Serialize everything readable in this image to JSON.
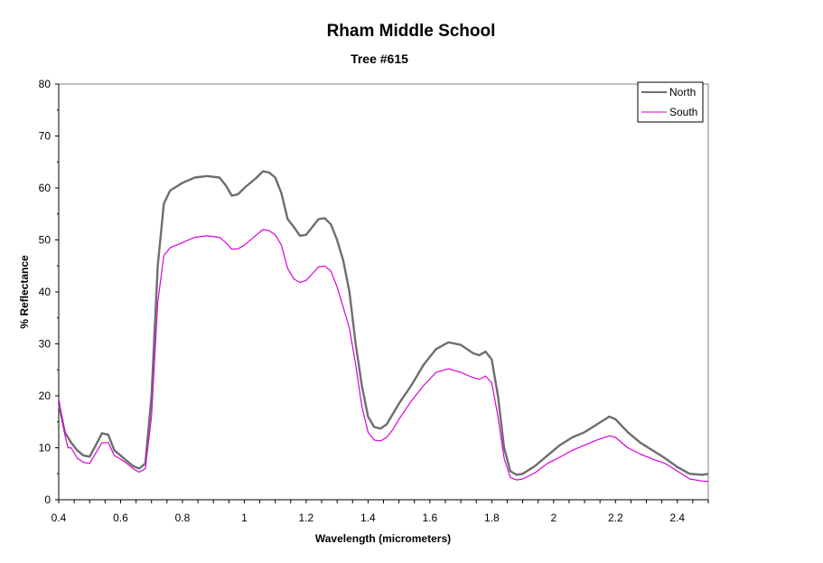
{
  "chart_data": {
    "type": "line",
    "title": "Rham Middle School",
    "subtitle": "Tree #615",
    "xlabel": "Wavelength (micrometers)",
    "ylabel": "% Reflectance",
    "xlim": [
      0.4,
      2.5
    ],
    "ylim": [
      0,
      80
    ],
    "x_ticks": [
      "0.4",
      "0.6",
      "0.8",
      "1",
      "1.2",
      "1.4",
      "1.6",
      "1.8",
      "2",
      "2.2",
      "2.4"
    ],
    "x_tick_values": [
      0.4,
      0.6,
      0.8,
      1.0,
      1.2,
      1.4,
      1.6,
      1.8,
      2.0,
      2.2,
      2.4
    ],
    "y_ticks": [
      "0",
      "10",
      "20",
      "30",
      "40",
      "50",
      "60",
      "70",
      "80"
    ],
    "y_tick_values": [
      0,
      10,
      20,
      30,
      40,
      50,
      60,
      70,
      80
    ],
    "grid": false,
    "legend_position": "top-right",
    "series": [
      {
        "name": "North",
        "color": "#6e6e6e",
        "points": [
          [
            0.4,
            18.5
          ],
          [
            0.42,
            13.0
          ],
          [
            0.44,
            11.0
          ],
          [
            0.46,
            9.5
          ],
          [
            0.48,
            8.5
          ],
          [
            0.5,
            8.3
          ],
          [
            0.52,
            10.5
          ],
          [
            0.54,
            12.8
          ],
          [
            0.56,
            12.5
          ],
          [
            0.58,
            9.5
          ],
          [
            0.6,
            8.5
          ],
          [
            0.62,
            7.5
          ],
          [
            0.64,
            6.5
          ],
          [
            0.66,
            6.0
          ],
          [
            0.68,
            7.0
          ],
          [
            0.7,
            20.0
          ],
          [
            0.72,
            45.0
          ],
          [
            0.74,
            57.0
          ],
          [
            0.76,
            59.5
          ],
          [
            0.8,
            61.0
          ],
          [
            0.84,
            62.0
          ],
          [
            0.88,
            62.3
          ],
          [
            0.92,
            62.0
          ],
          [
            0.94,
            60.5
          ],
          [
            0.96,
            58.5
          ],
          [
            0.98,
            58.8
          ],
          [
            1.0,
            60.0
          ],
          [
            1.04,
            62.0
          ],
          [
            1.06,
            63.2
          ],
          [
            1.08,
            63.0
          ],
          [
            1.1,
            62.0
          ],
          [
            1.12,
            59.0
          ],
          [
            1.14,
            54.0
          ],
          [
            1.16,
            52.5
          ],
          [
            1.18,
            50.8
          ],
          [
            1.2,
            51.0
          ],
          [
            1.22,
            52.5
          ],
          [
            1.24,
            54.0
          ],
          [
            1.26,
            54.2
          ],
          [
            1.28,
            53.0
          ],
          [
            1.3,
            50.0
          ],
          [
            1.32,
            46.0
          ],
          [
            1.34,
            40.0
          ],
          [
            1.36,
            30.0
          ],
          [
            1.38,
            22.0
          ],
          [
            1.4,
            16.0
          ],
          [
            1.42,
            14.0
          ],
          [
            1.44,
            13.7
          ],
          [
            1.46,
            14.5
          ],
          [
            1.48,
            16.5
          ],
          [
            1.5,
            18.5
          ],
          [
            1.54,
            22.0
          ],
          [
            1.58,
            26.0
          ],
          [
            1.62,
            29.0
          ],
          [
            1.66,
            30.3
          ],
          [
            1.7,
            29.8
          ],
          [
            1.72,
            29.0
          ],
          [
            1.74,
            28.2
          ],
          [
            1.76,
            27.8
          ],
          [
            1.78,
            28.5
          ],
          [
            1.8,
            27.0
          ],
          [
            1.82,
            20.0
          ],
          [
            1.84,
            10.0
          ],
          [
            1.86,
            5.5
          ],
          [
            1.88,
            4.8
          ],
          [
            1.9,
            5.0
          ],
          [
            1.94,
            6.5
          ],
          [
            1.98,
            8.5
          ],
          [
            2.02,
            10.5
          ],
          [
            2.06,
            12.0
          ],
          [
            2.1,
            13.0
          ],
          [
            2.14,
            14.5
          ],
          [
            2.18,
            16.0
          ],
          [
            2.2,
            15.5
          ],
          [
            2.24,
            13.0
          ],
          [
            2.28,
            11.0
          ],
          [
            2.32,
            9.5
          ],
          [
            2.36,
            8.0
          ],
          [
            2.4,
            6.3
          ],
          [
            2.44,
            5.0
          ],
          [
            2.48,
            4.8
          ],
          [
            2.5,
            5.0
          ]
        ]
      },
      {
        "name": "South",
        "color": "#d800d8",
        "points": [
          [
            0.4,
            19.5
          ],
          [
            0.42,
            12.5
          ],
          [
            0.43,
            10.0
          ],
          [
            0.44,
            10.0
          ],
          [
            0.46,
            8.0
          ],
          [
            0.48,
            7.2
          ],
          [
            0.5,
            7.0
          ],
          [
            0.52,
            9.0
          ],
          [
            0.54,
            11.0
          ],
          [
            0.56,
            11.0
          ],
          [
            0.58,
            8.5
          ],
          [
            0.6,
            7.8
          ],
          [
            0.62,
            7.0
          ],
          [
            0.64,
            6.0
          ],
          [
            0.66,
            5.3
          ],
          [
            0.68,
            6.0
          ],
          [
            0.7,
            16.0
          ],
          [
            0.72,
            38.0
          ],
          [
            0.74,
            47.0
          ],
          [
            0.76,
            48.5
          ],
          [
            0.8,
            49.5
          ],
          [
            0.84,
            50.5
          ],
          [
            0.88,
            50.8
          ],
          [
            0.92,
            50.5
          ],
          [
            0.94,
            49.5
          ],
          [
            0.96,
            48.2
          ],
          [
            0.98,
            48.3
          ],
          [
            1.0,
            49.0
          ],
          [
            1.04,
            51.0
          ],
          [
            1.06,
            52.0
          ],
          [
            1.08,
            51.8
          ],
          [
            1.1,
            51.0
          ],
          [
            1.12,
            49.0
          ],
          [
            1.14,
            44.5
          ],
          [
            1.16,
            42.5
          ],
          [
            1.18,
            41.8
          ],
          [
            1.2,
            42.2
          ],
          [
            1.22,
            43.5
          ],
          [
            1.24,
            44.8
          ],
          [
            1.26,
            45.0
          ],
          [
            1.28,
            44.0
          ],
          [
            1.3,
            41.0
          ],
          [
            1.32,
            37.0
          ],
          [
            1.34,
            33.0
          ],
          [
            1.36,
            26.0
          ],
          [
            1.38,
            18.0
          ],
          [
            1.4,
            13.0
          ],
          [
            1.42,
            11.5
          ],
          [
            1.44,
            11.3
          ],
          [
            1.46,
            12.0
          ],
          [
            1.48,
            13.5
          ],
          [
            1.5,
            15.5
          ],
          [
            1.54,
            19.0
          ],
          [
            1.58,
            22.0
          ],
          [
            1.62,
            24.5
          ],
          [
            1.66,
            25.2
          ],
          [
            1.7,
            24.5
          ],
          [
            1.72,
            24.0
          ],
          [
            1.74,
            23.5
          ],
          [
            1.76,
            23.2
          ],
          [
            1.78,
            23.8
          ],
          [
            1.8,
            22.5
          ],
          [
            1.82,
            16.0
          ],
          [
            1.84,
            8.0
          ],
          [
            1.86,
            4.3
          ],
          [
            1.88,
            3.8
          ],
          [
            1.9,
            4.0
          ],
          [
            1.94,
            5.2
          ],
          [
            1.98,
            7.0
          ],
          [
            2.02,
            8.2
          ],
          [
            2.06,
            9.5
          ],
          [
            2.1,
            10.5
          ],
          [
            2.14,
            11.5
          ],
          [
            2.18,
            12.3
          ],
          [
            2.2,
            12.0
          ],
          [
            2.24,
            10.0
          ],
          [
            2.28,
            8.8
          ],
          [
            2.32,
            7.8
          ],
          [
            2.36,
            7.0
          ],
          [
            2.4,
            5.5
          ],
          [
            2.44,
            4.0
          ],
          [
            2.48,
            3.6
          ],
          [
            2.5,
            3.5
          ]
        ]
      }
    ]
  }
}
